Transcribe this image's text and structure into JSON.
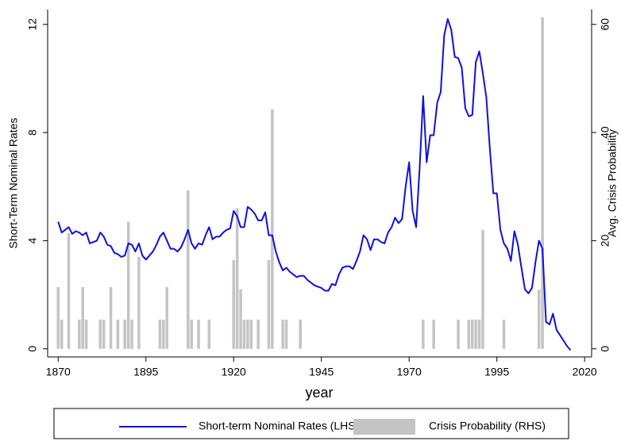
{
  "chart_data": {
    "type": "combo",
    "xlabel": "year",
    "ylabel": "Short-Term Nominal Rates",
    "y2label": "Avg. Crisis Probability",
    "xlim": [
      1867,
      2022
    ],
    "xticks": [
      1870,
      1895,
      1920,
      1945,
      1970,
      1995,
      2020
    ],
    "ylim": [
      -0.3,
      12.55
    ],
    "yticks": [
      0,
      4,
      8,
      12
    ],
    "y2lim": [
      -1.5,
      62.75
    ],
    "y2ticks": [
      0,
      20,
      40,
      60
    ],
    "legend": "bottom",
    "series": [
      {
        "name": "Short-term Nominal Rates (LHS)",
        "type": "line",
        "color": "#1010e0",
        "x": [
          1870,
          1871,
          1872,
          1873,
          1874,
          1875,
          1876,
          1877,
          1878,
          1879,
          1880,
          1881,
          1882,
          1883,
          1884,
          1885,
          1886,
          1887,
          1888,
          1889,
          1890,
          1891,
          1892,
          1893,
          1894,
          1895,
          1896,
          1897,
          1898,
          1899,
          1900,
          1901,
          1902,
          1903,
          1904,
          1905,
          1906,
          1907,
          1908,
          1909,
          1910,
          1911,
          1912,
          1913,
          1914,
          1915,
          1916,
          1917,
          1918,
          1919,
          1920,
          1921,
          1922,
          1923,
          1924,
          1925,
          1926,
          1927,
          1928,
          1929,
          1930,
          1931,
          1932,
          1933,
          1934,
          1935,
          1936,
          1937,
          1938,
          1939,
          1940,
          1941,
          1942,
          1943,
          1944,
          1945,
          1946,
          1947,
          1948,
          1949,
          1950,
          1951,
          1952,
          1953,
          1954,
          1955,
          1956,
          1957,
          1958,
          1959,
          1960,
          1961,
          1962,
          1963,
          1964,
          1965,
          1966,
          1967,
          1968,
          1969,
          1970,
          1971,
          1972,
          1973,
          1974,
          1975,
          1976,
          1977,
          1978,
          1979,
          1980,
          1981,
          1982,
          1983,
          1984,
          1985,
          1986,
          1987,
          1988,
          1989,
          1990,
          1991,
          1992,
          1993,
          1994,
          1995,
          1996,
          1997,
          1998,
          1999,
          2000,
          2001,
          2002,
          2003,
          2004,
          2005,
          2006,
          2007,
          2008,
          2009,
          2010,
          2011,
          2012,
          2013,
          2014,
          2015,
          2016
        ],
        "values": [
          4.7,
          4.3,
          4.4,
          4.5,
          4.25,
          4.35,
          4.3,
          4.2,
          4.3,
          3.9,
          3.95,
          4.0,
          4.3,
          4.15,
          3.85,
          3.8,
          3.55,
          3.5,
          3.4,
          3.45,
          3.9,
          3.85,
          3.6,
          3.9,
          3.45,
          3.3,
          3.45,
          3.6,
          3.85,
          4.15,
          4.3,
          4.0,
          3.7,
          3.7,
          3.6,
          3.75,
          4.05,
          4.4,
          3.9,
          3.7,
          3.9,
          3.85,
          4.2,
          4.5,
          4.05,
          4.15,
          4.15,
          4.3,
          4.4,
          4.45,
          5.1,
          4.9,
          4.5,
          4.5,
          5.25,
          5.15,
          5.0,
          4.75,
          4.75,
          5.05,
          4.2,
          4.2,
          3.6,
          3.2,
          2.9,
          3.0,
          2.85,
          2.75,
          2.65,
          2.7,
          2.7,
          2.55,
          2.45,
          2.35,
          2.3,
          2.25,
          2.15,
          2.15,
          2.4,
          2.35,
          2.75,
          3.0,
          3.05,
          3.05,
          2.95,
          3.25,
          3.6,
          4.2,
          4.05,
          3.65,
          4.05,
          4.05,
          3.95,
          3.9,
          4.3,
          4.5,
          4.85,
          4.65,
          4.8,
          6.0,
          6.9,
          5.1,
          4.5,
          6.7,
          9.35,
          6.9,
          7.9,
          7.9,
          9.1,
          9.5,
          11.6,
          12.2,
          11.8,
          10.8,
          10.75,
          10.4,
          8.9,
          8.6,
          8.65,
          10.6,
          11.0,
          10.2,
          9.3,
          7.4,
          5.75,
          5.75,
          4.4,
          3.9,
          3.7,
          3.25,
          4.35,
          3.85,
          3.0,
          2.2,
          2.05,
          2.25,
          3.2,
          4.0,
          3.7,
          1.0,
          0.9,
          1.3,
          0.7,
          0.5,
          0.3,
          0.1,
          -0.05
        ]
      },
      {
        "name": "Crisis Probability (RHS)",
        "type": "bar",
        "axis": "y2",
        "color": "#c4c4c4",
        "x": [
          1870,
          1871,
          1873,
          1876,
          1877,
          1878,
          1882,
          1883,
          1885,
          1887,
          1889,
          1890,
          1891,
          1893,
          1899,
          1900,
          1901,
          1907,
          1908,
          1910,
          1913,
          1920,
          1921,
          1922,
          1923,
          1924,
          1925,
          1927,
          1930,
          1931,
          1934,
          1935,
          1939,
          1974,
          1977,
          1984,
          1987,
          1988,
          1989,
          1990,
          1991,
          1997,
          2007,
          2008
        ],
        "values": [
          11.4,
          5.4,
          21.4,
          5.4,
          11.4,
          5.4,
          5.4,
          5.4,
          11.4,
          5.4,
          5.4,
          23.5,
          5.4,
          17,
          5.4,
          5.4,
          11.4,
          29.3,
          5.4,
          5.4,
          5.4,
          16.4,
          26,
          11,
          5.4,
          5.4,
          5.4,
          5.4,
          16.4,
          44.3,
          5.4,
          5.4,
          5.4,
          5.4,
          5.4,
          5.4,
          5.4,
          5.4,
          5.4,
          5.4,
          22,
          5.4,
          10.9,
          61.3
        ]
      }
    ]
  }
}
